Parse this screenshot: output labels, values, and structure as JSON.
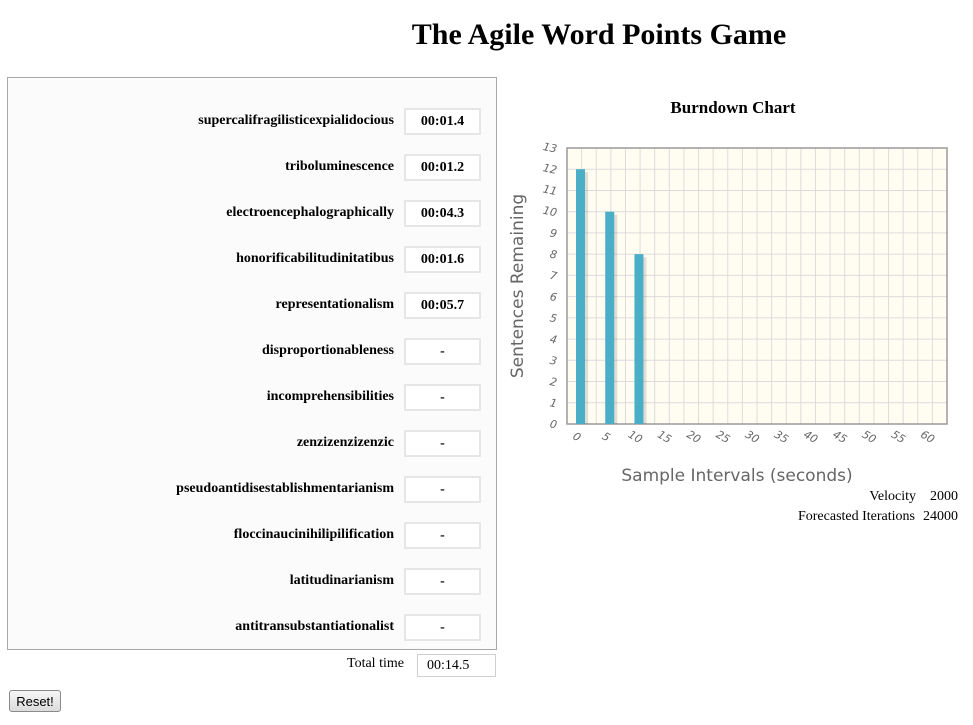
{
  "page": {
    "title": "The Agile Word Points Game"
  },
  "words": [
    {
      "word": "supercalifragilisticexpialidocious",
      "time": "00:01.4"
    },
    {
      "word": "triboluminescence",
      "time": "00:01.2"
    },
    {
      "word": "electroencephalographically",
      "time": "00:04.3"
    },
    {
      "word": "honorificabilitudinitatibus",
      "time": "00:01.6"
    },
    {
      "word": "representationalism",
      "time": "00:05.7"
    },
    {
      "word": "disproportionableness",
      "time": "-"
    },
    {
      "word": "incomprehensibilities",
      "time": "-"
    },
    {
      "word": "zenzizenzizenzic",
      "time": "-"
    },
    {
      "word": "pseudoantidisestablishmentarianism",
      "time": "-"
    },
    {
      "word": "floccinaucinihilipilification",
      "time": "-"
    },
    {
      "word": "latitudinarianism",
      "time": "-"
    },
    {
      "word": "antitransubstantiationalist",
      "time": "-"
    }
  ],
  "total": {
    "label": "Total time",
    "value": "00:14.5"
  },
  "reset_label": "Reset!",
  "chart_data": {
    "type": "bar",
    "title": "Burndown Chart",
    "xlabel": "Sample Intervals (seconds)",
    "ylabel": "Sentences Remaining",
    "x_ticks": [
      "0",
      "5",
      "10",
      "15",
      "20",
      "25",
      "30",
      "35",
      "40",
      "45",
      "50",
      "55",
      "60"
    ],
    "y_ticks": [
      "0",
      "1",
      "2",
      "3",
      "4",
      "5",
      "6",
      "7",
      "8",
      "9",
      "10",
      "11",
      "12",
      "13"
    ],
    "xlim": [
      0,
      65
    ],
    "ylim": [
      0,
      13
    ],
    "x": [
      0,
      5,
      10
    ],
    "values": [
      12,
      10,
      8
    ],
    "bar_color": "#4aaec6",
    "plot_bg": "#fffdf2",
    "grid": true
  },
  "stats": {
    "velocity_label": "Velocity",
    "velocity_value": "2000",
    "forecast_label": "Forecasted Iterations",
    "forecast_value": "24000"
  }
}
